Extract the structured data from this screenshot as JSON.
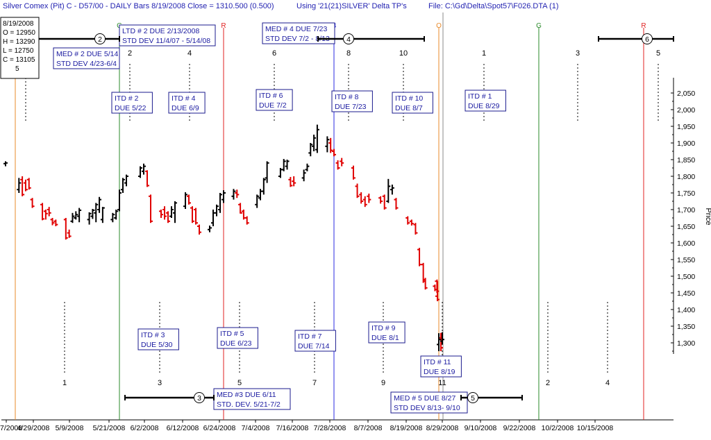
{
  "header": {
    "title": "Silver Comex (Pit) C - D57/00  - DAILY Bars  8/19/2008 Close = 1310.500 (0.500)",
    "using": "Using '21(21)SILVER' Delta TP's",
    "file": "File: C:\\Gd\\Delta\\Spot57\\F026.DTA (1)"
  },
  "ohlc_box": {
    "date": "8/19/2008",
    "open": "O = 12950",
    "high": "H = 13290",
    "low": "L = 12750",
    "close": "C = 13105",
    "extra": "5"
  },
  "colors": {
    "up": "#000000",
    "down": "#e00000",
    "itd_box_border": "#1a1a8c",
    "label_text": "#1a1aa0"
  },
  "chart_data": {
    "type": "ohlc",
    "ylabel": "Price",
    "ylim": [
      1200,
      2120
    ],
    "y_ticks": [
      "2,050",
      "2,000",
      "1,950",
      "1,900",
      "1,850",
      "1,800",
      "1,750",
      "1,700",
      "1,650",
      "1,600",
      "1,550",
      "1,500",
      "1,450",
      "1,400",
      "1,350",
      "1,300"
    ],
    "x_ticks": [
      "7/2008",
      "4/29/2008",
      "5/9/2008",
      "5/21/2008",
      "6/2/2008",
      "6/12/2008",
      "6/24/2008",
      "7/4/2008",
      "7/16/2008",
      "7/28/2008",
      "8/7/2008",
      "8/19/2008",
      "8/29/2008",
      "9/10/2008",
      "9/22/2008",
      "10/2/2008",
      "10/15/2008"
    ],
    "bars": [
      {
        "date": "4/17/2008",
        "o": 1838,
        "h": 1845,
        "l": 1830,
        "c": 1840
      },
      {
        "date": "4/21/2008",
        "o": 1760,
        "h": 1795,
        "l": 1750,
        "c": 1780
      },
      {
        "date": "4/22/2008",
        "o": 1790,
        "h": 1800,
        "l": 1740,
        "c": 1745
      },
      {
        "date": "4/23/2008",
        "o": 1780,
        "h": 1790,
        "l": 1755,
        "c": 1760
      },
      {
        "date": "4/24/2008",
        "o": 1790,
        "h": 1795,
        "l": 1760,
        "c": 1765
      },
      {
        "date": "4/25/2008",
        "o": 1730,
        "h": 1735,
        "l": 1705,
        "c": 1710
      },
      {
        "date": "4/28/2008",
        "o": 1715,
        "h": 1720,
        "l": 1668,
        "c": 1672
      },
      {
        "date": "4/29/2008",
        "o": 1695,
        "h": 1700,
        "l": 1670,
        "c": 1688
      },
      {
        "date": "4/30/2008",
        "o": 1700,
        "h": 1708,
        "l": 1680,
        "c": 1690
      },
      {
        "date": "5/1/2008",
        "o": 1670,
        "h": 1675,
        "l": 1653,
        "c": 1660
      },
      {
        "date": "5/2/2008",
        "o": 1665,
        "h": 1670,
        "l": 1650,
        "c": 1655
      },
      {
        "date": "5/5/2008",
        "o": 1670,
        "h": 1675,
        "l": 1610,
        "c": 1615
      },
      {
        "date": "5/6/2008",
        "o": 1630,
        "h": 1640,
        "l": 1615,
        "c": 1620
      },
      {
        "date": "5/7/2008",
        "o": 1665,
        "h": 1690,
        "l": 1660,
        "c": 1680
      },
      {
        "date": "5/8/2008",
        "o": 1675,
        "h": 1695,
        "l": 1670,
        "c": 1685
      },
      {
        "date": "5/9/2008",
        "o": 1680,
        "h": 1705,
        "l": 1662,
        "c": 1698
      },
      {
        "date": "5/12/2008",
        "o": 1670,
        "h": 1692,
        "l": 1655,
        "c": 1688
      },
      {
        "date": "5/13/2008",
        "o": 1680,
        "h": 1702,
        "l": 1672,
        "c": 1698
      },
      {
        "date": "5/14/2008",
        "o": 1690,
        "h": 1720,
        "l": 1662,
        "c": 1715
      },
      {
        "date": "5/15/2008",
        "o": 1700,
        "h": 1738,
        "l": 1690,
        "c": 1730
      },
      {
        "date": "5/16/2008",
        "o": 1670,
        "h": 1708,
        "l": 1660,
        "c": 1705
      },
      {
        "date": "5/19/2008",
        "o": 1670,
        "h": 1690,
        "l": 1662,
        "c": 1685
      },
      {
        "date": "5/20/2008",
        "o": 1675,
        "h": 1700,
        "l": 1670,
        "c": 1695
      },
      {
        "date": "5/21/2008",
        "o": 1700,
        "h": 1760,
        "l": 1695,
        "c": 1750
      },
      {
        "date": "5/22/2008",
        "o": 1760,
        "h": 1795,
        "l": 1750,
        "c": 1790
      },
      {
        "date": "5/23/2008",
        "o": 1780,
        "h": 1805,
        "l": 1770,
        "c": 1800
      },
      {
        "date": "5/27/2008",
        "o": 1800,
        "h": 1830,
        "l": 1795,
        "c": 1825
      },
      {
        "date": "5/28/2008",
        "o": 1815,
        "h": 1838,
        "l": 1805,
        "c": 1830
      },
      {
        "date": "5/29/2008",
        "o": 1815,
        "h": 1818,
        "l": 1768,
        "c": 1772
      },
      {
        "date": "5/30/2008",
        "o": 1740,
        "h": 1745,
        "l": 1660,
        "c": 1665
      },
      {
        "date": "6/2/2008",
        "o": 1695,
        "h": 1700,
        "l": 1675,
        "c": 1685
      },
      {
        "date": "6/3/2008",
        "o": 1700,
        "h": 1710,
        "l": 1670,
        "c": 1680
      },
      {
        "date": "6/4/2008",
        "o": 1690,
        "h": 1695,
        "l": 1660,
        "c": 1665
      },
      {
        "date": "6/5/2008",
        "o": 1680,
        "h": 1710,
        "l": 1675,
        "c": 1700
      },
      {
        "date": "6/6/2008",
        "o": 1690,
        "h": 1725,
        "l": 1660,
        "c": 1720
      },
      {
        "date": "6/9/2008",
        "o": 1710,
        "h": 1752,
        "l": 1702,
        "c": 1745
      },
      {
        "date": "6/10/2008",
        "o": 1740,
        "h": 1745,
        "l": 1715,
        "c": 1720
      },
      {
        "date": "6/11/2008",
        "o": 1705,
        "h": 1710,
        "l": 1660,
        "c": 1665
      },
      {
        "date": "6/12/2008",
        "o": 1700,
        "h": 1705,
        "l": 1655,
        "c": 1660
      },
      {
        "date": "6/13/2008",
        "o": 1650,
        "h": 1655,
        "l": 1625,
        "c": 1632
      },
      {
        "date": "6/16/2008",
        "o": 1640,
        "h": 1652,
        "l": 1632,
        "c": 1645
      },
      {
        "date": "6/17/2008",
        "o": 1660,
        "h": 1700,
        "l": 1650,
        "c": 1690
      },
      {
        "date": "6/18/2008",
        "o": 1690,
        "h": 1715,
        "l": 1680,
        "c": 1710
      },
      {
        "date": "6/19/2008",
        "o": 1700,
        "h": 1750,
        "l": 1690,
        "c": 1745
      },
      {
        "date": "6/20/2008",
        "o": 1730,
        "h": 1758,
        "l": 1720,
        "c": 1750
      },
      {
        "date": "6/23/2008",
        "o": 1740,
        "h": 1762,
        "l": 1730,
        "c": 1755
      },
      {
        "date": "6/24/2008",
        "o": 1750,
        "h": 1760,
        "l": 1735,
        "c": 1745
      },
      {
        "date": "6/25/2008",
        "o": 1715,
        "h": 1720,
        "l": 1688,
        "c": 1690
      },
      {
        "date": "6/26/2008",
        "o": 1695,
        "h": 1700,
        "l": 1670,
        "c": 1675
      },
      {
        "date": "6/27/2008",
        "o": 1675,
        "h": 1680,
        "l": 1655,
        "c": 1660
      },
      {
        "date": "6/30/2008",
        "o": 1715,
        "h": 1745,
        "l": 1705,
        "c": 1740
      },
      {
        "date": "7/1/2008",
        "o": 1735,
        "h": 1762,
        "l": 1728,
        "c": 1755
      },
      {
        "date": "7/2/2008",
        "o": 1755,
        "h": 1795,
        "l": 1745,
        "c": 1790
      },
      {
        "date": "7/3/2008",
        "o": 1795,
        "h": 1845,
        "l": 1780,
        "c": 1840
      },
      {
        "date": "7/7/2008",
        "o": 1800,
        "h": 1825,
        "l": 1795,
        "c": 1820
      },
      {
        "date": "7/8/2008",
        "o": 1820,
        "h": 1852,
        "l": 1815,
        "c": 1845
      },
      {
        "date": "7/9/2008",
        "o": 1830,
        "h": 1850,
        "l": 1820,
        "c": 1845
      },
      {
        "date": "7/10/2008",
        "o": 1790,
        "h": 1798,
        "l": 1768,
        "c": 1772
      },
      {
        "date": "7/11/2008",
        "o": 1785,
        "h": 1800,
        "l": 1770,
        "c": 1780
      },
      {
        "date": "7/14/2008",
        "o": 1795,
        "h": 1820,
        "l": 1785,
        "c": 1810
      },
      {
        "date": "7/15/2008",
        "o": 1820,
        "h": 1838,
        "l": 1815,
        "c": 1830
      },
      {
        "date": "7/16/2008",
        "o": 1870,
        "h": 1900,
        "l": 1860,
        "c": 1895
      },
      {
        "date": "7/17/2008",
        "o": 1890,
        "h": 1925,
        "l": 1875,
        "c": 1915
      },
      {
        "date": "7/18/2008",
        "o": 1880,
        "h": 1955,
        "l": 1870,
        "c": 1940
      },
      {
        "date": "7/21/2008",
        "o": 1890,
        "h": 1920,
        "l": 1872,
        "c": 1910
      },
      {
        "date": "7/22/2008",
        "o": 1900,
        "h": 1915,
        "l": 1870,
        "c": 1878
      },
      {
        "date": "7/23/2008",
        "o": 1875,
        "h": 1882,
        "l": 1860,
        "c": 1865
      },
      {
        "date": "7/24/2008",
        "o": 1840,
        "h": 1848,
        "l": 1820,
        "c": 1825
      },
      {
        "date": "7/25/2008",
        "o": 1845,
        "h": 1855,
        "l": 1830,
        "c": 1840
      },
      {
        "date": "7/28/2008",
        "o": 1825,
        "h": 1832,
        "l": 1790,
        "c": 1795
      },
      {
        "date": "7/29/2008",
        "o": 1770,
        "h": 1778,
        "l": 1735,
        "c": 1740
      },
      {
        "date": "7/30/2008",
        "o": 1745,
        "h": 1752,
        "l": 1718,
        "c": 1725
      },
      {
        "date": "7/31/2008",
        "o": 1730,
        "h": 1740,
        "l": 1708,
        "c": 1715
      },
      {
        "date": "8/1/2008",
        "o": 1740,
        "h": 1748,
        "l": 1720,
        "c": 1730
      },
      {
        "date": "8/4/2008",
        "o": 1735,
        "h": 1740,
        "l": 1718,
        "c": 1725
      },
      {
        "date": "8/5/2008",
        "o": 1740,
        "h": 1745,
        "l": 1700,
        "c": 1705
      },
      {
        "date": "8/6/2008",
        "o": 1725,
        "h": 1792,
        "l": 1720,
        "c": 1770
      },
      {
        "date": "8/7/2008",
        "o": 1760,
        "h": 1775,
        "l": 1745,
        "c": 1765
      },
      {
        "date": "8/8/2008",
        "o": 1730,
        "h": 1735,
        "l": 1700,
        "c": 1705
      },
      {
        "date": "8/11/2008",
        "o": 1675,
        "h": 1680,
        "l": 1655,
        "c": 1660
      },
      {
        "date": "8/12/2008",
        "o": 1665,
        "h": 1670,
        "l": 1652,
        "c": 1658
      },
      {
        "date": "8/13/2008",
        "o": 1655,
        "h": 1660,
        "l": 1625,
        "c": 1630
      },
      {
        "date": "8/14/2008",
        "o": 1580,
        "h": 1585,
        "l": 1530,
        "c": 1535
      },
      {
        "date": "8/15/2008",
        "o": 1535,
        "h": 1540,
        "l": 1480,
        "c": 1485
      },
      {
        "date": "8/15b/2008",
        "o": 1490,
        "h": 1495,
        "l": 1460,
        "c": 1465
      },
      {
        "date": "8/18/2008",
        "o": 1470,
        "h": 1475,
        "l": 1455,
        "c": 1460
      },
      {
        "date": "8/18b/2008",
        "o": 1485,
        "h": 1490,
        "l": 1450,
        "c": 1455
      },
      {
        "date": "8/19a/2008",
        "o": 1440,
        "h": 1485,
        "l": 1425,
        "c": 1430
      },
      {
        "date": "8/19b/2008",
        "o": 1315,
        "h": 1330,
        "l": 1275,
        "c": 1285
      },
      {
        "date": "8/19c/2008",
        "o": 1305,
        "h": 1332,
        "l": 1295,
        "c": 1310
      },
      {
        "date": "8/19/2008",
        "o": 1295,
        "h": 1329,
        "l": 1275,
        "c": 1310
      }
    ],
    "vertical_lines": [
      {
        "label": "",
        "color": "#e88a2a",
        "date": "4/17/2008"
      },
      {
        "label": "G",
        "color": "#2a8a2a",
        "date": "5/21/2008"
      },
      {
        "label": "R",
        "color": "#e02020",
        "date": "6/20/2008"
      },
      {
        "label": "B",
        "color": "#2a2ae0",
        "date": "7/23/2008"
      },
      {
        "label": "O",
        "color": "#e88a2a",
        "date": "8/19/2008"
      },
      {
        "label": "",
        "color": "#8a8a8a",
        "date": "8/20/2008"
      },
      {
        "label": "G",
        "color": "#2a8a2a",
        "date": "9/17/2008"
      },
      {
        "label": "R",
        "color": "#e02020",
        "date": "10/14/2008"
      }
    ],
    "cycle_marks_top": [
      {
        "label": "",
        "date": "4/23/2008"
      },
      {
        "label": "2",
        "date": "5/22/2008"
      },
      {
        "label": "4",
        "date": "6/9/2008"
      },
      {
        "label": "6",
        "date": "7/2/2008"
      },
      {
        "label": "8",
        "date": "7/24/2008"
      },
      {
        "label": "10",
        "date": "8/7/2008"
      },
      {
        "label": "1",
        "date": "8/29/2008"
      },
      {
        "label": "3",
        "date": "9/20/2008"
      },
      {
        "label": "5",
        "date": "10/15/2008"
      }
    ],
    "cycle_marks_bottom": [
      {
        "label": "1",
        "date": "5/1/2008"
      },
      {
        "label": "3",
        "date": "5/30/2008"
      },
      {
        "label": "5",
        "date": "6/23/2008"
      },
      {
        "label": "7",
        "date": "7/14/2008"
      },
      {
        "label": "9",
        "date": "8/1/2008"
      },
      {
        "label": "11",
        "date": "8/19/2008"
      },
      {
        "label": "2",
        "date": "9/10/2008"
      },
      {
        "label": "4",
        "date": "10/2/2008"
      }
    ],
    "itd_labels": [
      {
        "line1": "ITD # 2",
        "line2": "DUE 5/22"
      },
      {
        "line1": "ITD # 4",
        "line2": "DUE 6/9"
      },
      {
        "line1": "ITD # 6",
        "line2": "DUE 7/2"
      },
      {
        "line1": "ITD # 8",
        "line2": "DUE 7/23"
      },
      {
        "line1": "ITD # 10",
        "line2": "DUE 8/7"
      },
      {
        "line1": "ITD # 1",
        "line2": "DUE 8/29"
      },
      {
        "line1": "ITD # 3",
        "line2": "DUE 5/30"
      },
      {
        "line1": "ITD # 5",
        "line2": "DUE 6/23"
      },
      {
        "line1": "ITD # 7",
        "line2": "DUE 7/14"
      },
      {
        "line1": "ITD # 9",
        "line2": "DUE 8/1"
      },
      {
        "line1": "ITD # 11",
        "line2": "DUE 8/19"
      }
    ],
    "cycle_labels": [
      {
        "line1": "LTD # 2 DUE 2/13/2008",
        "line2": "STD DEV 11/4/07 - 5/14/08"
      },
      {
        "line1": "MED # 2 DUE 5/14",
        "line2": "STD DEV 4/23-6/4"
      },
      {
        "line1": "MED # 4 DUE 7/23",
        "line2": "STD DEV 7/2 - 8/13"
      },
      {
        "line1": "MED #3 DUE 6/11",
        "line2": "STD. DEV. 5/21-7/2"
      },
      {
        "line1": "MED # 5 DUE 8/27",
        "line2": "STD DEV 8/13- 9/10"
      }
    ],
    "range_markers": [
      {
        "label": "2"
      },
      {
        "label": "4"
      },
      {
        "label": "6"
      },
      {
        "label": "3"
      },
      {
        "label": "5"
      }
    ]
  }
}
